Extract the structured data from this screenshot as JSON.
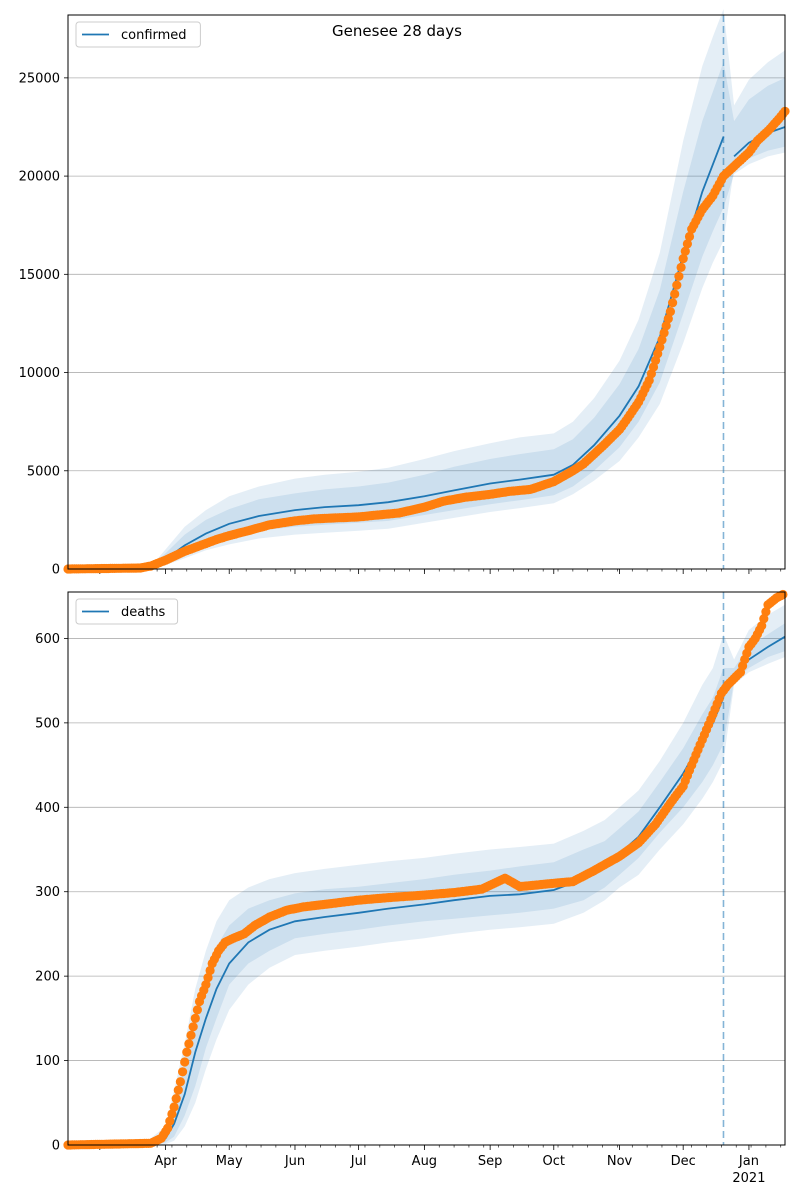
{
  "figure": {
    "title": "Genesee 28 days"
  },
  "colors": {
    "model_line": "#1f77b4",
    "band": "#1f77b4",
    "observed": "#ff7f0e",
    "vline": "#1f77b4",
    "grid": "#b0b0b0"
  },
  "chart_data": [
    {
      "type": "line",
      "id": "confirmed",
      "legend": "confirmed",
      "legend_position": "top-left",
      "grid": "horizontal",
      "x_axis": {
        "type": "date",
        "range": [
          "2020-02-15",
          "2021-01-18"
        ],
        "tick_labels": [
          "Apr",
          "May",
          "Jun",
          "Jul",
          "Aug",
          "Sep",
          "Oct",
          "Nov",
          "Dec",
          "Jan"
        ],
        "year_label": "2021",
        "show_tick_labels": false
      },
      "y_axis": {
        "range": [
          0,
          28200
        ],
        "ticks": [
          0,
          5000,
          10000,
          15000,
          20000,
          25000
        ]
      },
      "forecast_start": "2020-12-20",
      "model": {
        "x": [
          "2020-02-15",
          "2020-03-20",
          "2020-03-25",
          "2020-04-01",
          "2020-04-10",
          "2020-04-20",
          "2020-05-01",
          "2020-05-15",
          "2020-06-01",
          "2020-06-15",
          "2020-07-01",
          "2020-07-15",
          "2020-08-01",
          "2020-08-15",
          "2020-09-01",
          "2020-09-15",
          "2020-10-01",
          "2020-10-10",
          "2020-10-20",
          "2020-11-01",
          "2020-11-10",
          "2020-11-20",
          "2020-12-01",
          "2020-12-10",
          "2020-12-15",
          "2020-12-20",
          "2020-12-25",
          "2021-01-01",
          "2021-01-10",
          "2021-01-18"
        ],
        "y": [
          0,
          0,
          50,
          500,
          1200,
          1800,
          2300,
          2700,
          3000,
          3150,
          3250,
          3400,
          3700,
          4000,
          4350,
          4550,
          4800,
          5300,
          6300,
          7800,
          9300,
          11800,
          16000,
          19200,
          20600,
          22000,
          21000,
          21700,
          22200,
          22500
        ],
        "bands": [
          {
            "lower": [
              0,
              0,
              20,
              300,
              800,
              1250,
              1600,
              1950,
              2150,
              2250,
              2350,
              2450,
              2750,
              3000,
              3300,
              3500,
              3750,
              4200,
              5000,
              6200,
              7500,
              9500,
              13000,
              15900,
              17200,
              18400,
              20100,
              20600,
              21000,
              21200
            ],
            "upper": [
              0,
              0,
              90,
              800,
              1750,
              2500,
              3050,
              3550,
              3850,
              4050,
              4200,
              4400,
              4800,
              5200,
              5600,
              5850,
              6100,
              6600,
              7700,
              9400,
              11200,
              14200,
              19200,
              22800,
              24300,
              25800,
              22800,
              23900,
              24600,
              25000
            ]
          },
          {
            "lower": [
              0,
              0,
              10,
              200,
              550,
              950,
              1250,
              1550,
              1750,
              1850,
              1950,
              2050,
              2350,
              2600,
              2900,
              3100,
              3350,
              3800,
              4500,
              5500,
              6700,
              8400,
              11500,
              14300,
              15600,
              16700,
              20400,
              20900,
              21300,
              21500
            ],
            "upper": [
              0,
              0,
              110,
              1000,
              2150,
              3000,
              3700,
              4200,
              4600,
              4800,
              4950,
              5150,
              5600,
              6000,
              6400,
              6700,
              6900,
              7500,
              8700,
              10600,
              12700,
              16100,
              21800,
              25600,
              27100,
              28500,
              23600,
              24900,
              25800,
              26400
            ]
          }
        ]
      },
      "observed": {
        "x": [
          "2020-02-15",
          "2020-03-20",
          "2020-03-25",
          "2020-04-01",
          "2020-04-05",
          "2020-04-10",
          "2020-04-15",
          "2020-04-20",
          "2020-04-25",
          "2020-05-01",
          "2020-05-10",
          "2020-05-20",
          "2020-06-01",
          "2020-06-10",
          "2020-06-20",
          "2020-07-01",
          "2020-07-10",
          "2020-07-20",
          "2020-08-01",
          "2020-08-10",
          "2020-08-20",
          "2020-09-01",
          "2020-09-10",
          "2020-09-20",
          "2020-10-01",
          "2020-10-10",
          "2020-10-15",
          "2020-10-20",
          "2020-10-25",
          "2020-11-01",
          "2020-11-05",
          "2020-11-10",
          "2020-11-15",
          "2020-11-20",
          "2020-11-25",
          "2020-12-01",
          "2020-12-05",
          "2020-12-10",
          "2020-12-15",
          "2020-12-20",
          "2020-12-25",
          "2021-01-01",
          "2021-01-05",
          "2021-01-10",
          "2021-01-15",
          "2021-01-18"
        ],
        "y": [
          0,
          50,
          150,
          450,
          650,
          900,
          1100,
          1300,
          1500,
          1700,
          1950,
          2250,
          2450,
          2550,
          2600,
          2650,
          2750,
          2850,
          3150,
          3450,
          3650,
          3800,
          3950,
          4050,
          4450,
          5000,
          5350,
          5850,
          6350,
          7100,
          7700,
          8500,
          9600,
          11300,
          13100,
          15800,
          17300,
          18300,
          19000,
          20000,
          20500,
          21200,
          21800,
          22300,
          22900,
          23300
        ]
      }
    },
    {
      "type": "line",
      "id": "deaths",
      "legend": "deaths",
      "legend_position": "top-left",
      "grid": "horizontal",
      "x_axis": {
        "type": "date",
        "range": [
          "2020-02-15",
          "2021-01-18"
        ],
        "tick_labels": [
          "Apr",
          "May",
          "Jun",
          "Jul",
          "Aug",
          "Sep",
          "Oct",
          "Nov",
          "Dec",
          "Jan"
        ],
        "year_label": "2021",
        "show_tick_labels": true
      },
      "y_axis": {
        "range": [
          0,
          655
        ],
        "ticks": [
          0,
          100,
          200,
          300,
          400,
          500,
          600
        ]
      },
      "forecast_start": "2020-12-20",
      "model": {
        "x": [
          "2020-02-15",
          "2020-03-20",
          "2020-03-25",
          "2020-04-01",
          "2020-04-05",
          "2020-04-10",
          "2020-04-15",
          "2020-04-20",
          "2020-04-25",
          "2020-05-01",
          "2020-05-10",
          "2020-05-20",
          "2020-06-01",
          "2020-06-15",
          "2020-07-01",
          "2020-07-15",
          "2020-08-01",
          "2020-08-15",
          "2020-09-01",
          "2020-09-15",
          "2020-10-01",
          "2020-10-15",
          "2020-10-25",
          "2020-11-01",
          "2020-11-10",
          "2020-11-20",
          "2020-12-01",
          "2020-12-10",
          "2020-12-15",
          "2020-12-20",
          "2020-12-25",
          "2021-01-01",
          "2021-01-10",
          "2021-01-18"
        ],
        "y": [
          0,
          0,
          2,
          8,
          25,
          60,
          110,
          150,
          185,
          215,
          240,
          255,
          265,
          270,
          275,
          280,
          285,
          290,
          295,
          297,
          302,
          315,
          330,
          345,
          365,
          400,
          440,
          480,
          500,
          530,
          555,
          575,
          590,
          602
        ],
        "bands": [
          {
            "lower": [
              0,
              0,
              0,
              3,
              10,
              35,
              70,
              115,
              150,
              190,
              215,
              230,
              245,
              250,
              255,
              260,
              265,
              268,
              272,
              275,
              280,
              290,
              305,
              320,
              340,
              370,
              400,
              430,
              450,
              475,
              550,
              565,
              578,
              585
            ],
            "upper": [
              0,
              0,
              5,
              15,
              45,
              95,
              155,
              200,
              235,
              260,
              280,
              290,
              298,
              303,
              306,
              310,
              315,
              320,
              325,
              330,
              335,
              350,
              360,
              375,
              395,
              430,
              470,
              510,
              530,
              565,
              565,
              590,
              605,
              618
            ]
          },
          {
            "lower": [
              0,
              0,
              0,
              1,
              5,
              22,
              50,
              90,
              125,
              160,
              190,
              210,
              225,
              230,
              235,
              240,
              245,
              250,
              255,
              258,
              262,
              275,
              290,
              305,
              320,
              350,
              380,
              410,
              430,
              455,
              545,
              560,
              570,
              578
            ],
            "upper": [
              0,
              0,
              8,
              22,
              65,
              120,
              185,
              230,
              265,
              290,
              305,
              315,
              322,
              327,
              332,
              336,
              340,
              345,
              350,
              353,
              357,
              372,
              385,
              400,
              420,
              455,
              500,
              545,
              565,
              605,
              575,
              610,
              628,
              640
            ]
          }
        ]
      },
      "observed": {
        "x": [
          "2020-02-15",
          "2020-03-25",
          "2020-03-30",
          "2020-04-02",
          "2020-04-05",
          "2020-04-08",
          "2020-04-11",
          "2020-04-14",
          "2020-04-17",
          "2020-04-20",
          "2020-04-23",
          "2020-04-26",
          "2020-04-29",
          "2020-05-03",
          "2020-05-08",
          "2020-05-13",
          "2020-05-20",
          "2020-05-28",
          "2020-06-05",
          "2020-06-15",
          "2020-07-01",
          "2020-07-15",
          "2020-08-01",
          "2020-08-15",
          "2020-08-28",
          "2020-09-08",
          "2020-09-15",
          "2020-10-01",
          "2020-10-10",
          "2020-10-20",
          "2020-11-01",
          "2020-11-10",
          "2020-11-18",
          "2020-11-25",
          "2020-12-01",
          "2020-12-05",
          "2020-12-10",
          "2020-12-15",
          "2020-12-19",
          "2020-12-22",
          "2020-12-28",
          "2021-01-01",
          "2021-01-04",
          "2021-01-07",
          "2021-01-10",
          "2021-01-14",
          "2021-01-17"
        ],
        "y": [
          0,
          2,
          8,
          20,
          45,
          75,
          110,
          140,
          170,
          190,
          215,
          230,
          240,
          245,
          250,
          260,
          270,
          278,
          282,
          285,
          290,
          293,
          296,
          299,
          303,
          316,
          306,
          310,
          312,
          325,
          342,
          358,
          380,
          405,
          425,
          450,
          480,
          510,
          535,
          545,
          560,
          590,
          600,
          615,
          640,
          648,
          652
        ]
      }
    }
  ]
}
